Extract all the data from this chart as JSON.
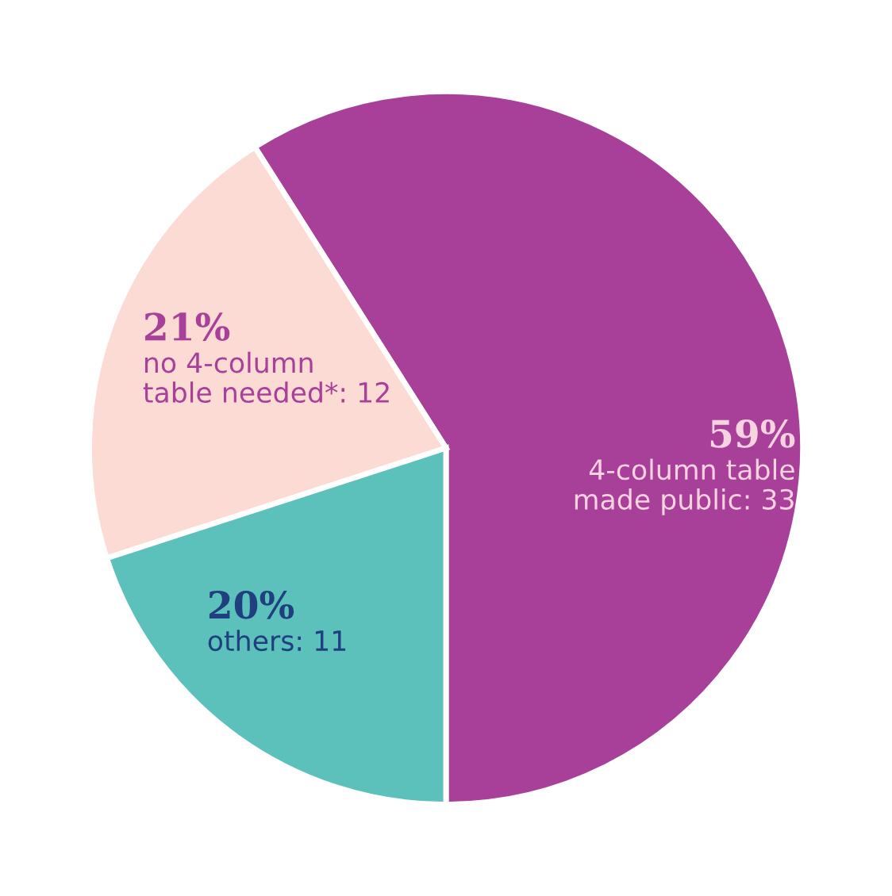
{
  "chart_data": {
    "type": "pie",
    "categories": [
      "4-column table\nmade public: 33",
      "no 4-column\ntable needed*: 12",
      "others: 11"
    ],
    "values": [
      59,
      21,
      20
    ],
    "value_labels": [
      "59%",
      "21%",
      "20%"
    ],
    "colors": [
      "#a83f98",
      "#fbdbd3",
      "#5cc0bb"
    ]
  }
}
